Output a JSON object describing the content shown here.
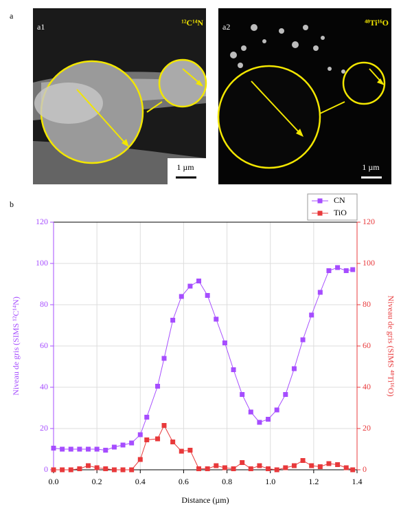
{
  "figure_labels": [
    "a",
    "b"
  ],
  "panels": [
    {
      "label": "a1",
      "species": "¹²C¹⁴N",
      "scale": "1 µm"
    },
    {
      "label": "a2",
      "species": "⁴⁸Ti¹⁶O",
      "scale": "1 µm"
    }
  ],
  "chart_data": {
    "type": "line",
    "x_label": "Distance (µm)",
    "y_label": "Niveau de gris (SIMS ¹²C¹⁴N)",
    "y2_label": "Niveau de gris (SIMS ⁴⁸Ti¹⁶O)",
    "x": [
      0,
      0.04,
      0.08,
      0.12,
      0.16,
      0.2,
      0.24,
      0.28,
      0.32,
      0.36,
      0.4,
      0.43,
      0.48,
      0.51,
      0.55,
      0.59,
      0.63,
      0.67,
      0.71,
      0.75,
      0.79,
      0.83,
      0.87,
      0.91,
      0.95,
      0.99,
      1.03,
      1.07,
      1.11,
      1.15,
      1.19,
      1.23,
      1.27,
      1.31,
      1.35,
      1.38
    ],
    "series": [
      {
        "name": "CN",
        "color": "#a64dff",
        "axis": "y",
        "values": [
          10.5,
          10,
          10,
          10,
          10,
          10,
          9.5,
          11,
          12,
          13,
          17,
          25.5,
          40.5,
          54,
          72.5,
          84,
          89,
          91.5,
          84.5,
          73,
          61.5,
          48.5,
          36.5,
          28,
          23,
          24.5,
          29,
          36.5,
          49,
          63,
          75,
          86,
          96.5,
          98,
          96.5,
          97
        ]
      },
      {
        "name": "TiO",
        "color": "#e8393b",
        "axis": "y2",
        "values": [
          0,
          0,
          0,
          0.5,
          2,
          1,
          0.5,
          0,
          0,
          0,
          5,
          14.5,
          15,
          21.5,
          13.5,
          9,
          9.5,
          0.5,
          0.5,
          2,
          1,
          0.5,
          3.5,
          0.5,
          2,
          0.5,
          0,
          1,
          2,
          4.5,
          2,
          1.5,
          3,
          2.5,
          1,
          0
        ]
      }
    ],
    "xlim": [
      0,
      1.4
    ],
    "xticks": [
      {
        "value": 0,
        "label": "0.0"
      },
      0.2,
      0.4,
      0.6,
      0.8,
      {
        "value": 1,
        "label": "1.0"
      },
      1.2,
      1.4
    ],
    "ylim": [
      0,
      120
    ],
    "yticks": [
      0,
      20,
      40,
      60,
      80,
      100,
      120
    ],
    "y2lim": [
      0,
      120
    ],
    "y2ticks": [
      0,
      20,
      40,
      60,
      80,
      100,
      120
    ],
    "grid": true,
    "legend": "top-right"
  }
}
